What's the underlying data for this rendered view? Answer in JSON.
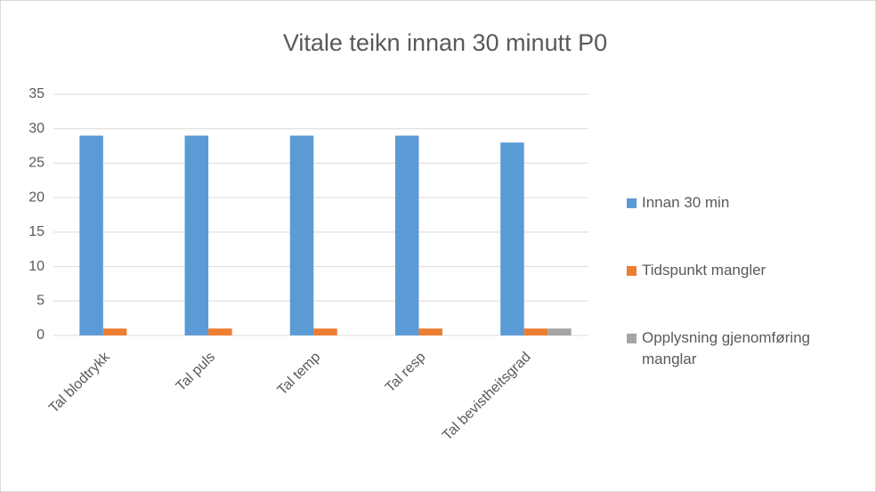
{
  "chart_data": {
    "type": "bar",
    "title": "Vitale teikn innan 30 minutt P0",
    "categories": [
      "Tal blodtrykk",
      "Tal puls",
      "Tal temp",
      "Tal resp",
      "Tal bevistheitsgrad"
    ],
    "series": [
      {
        "name": "Innan 30 min",
        "color": "#5b9bd5",
        "values": [
          29,
          29,
          29,
          29,
          28
        ]
      },
      {
        "name": "Tidspunkt mangler",
        "color": "#ed7d31",
        "values": [
          1,
          1,
          1,
          1,
          1
        ]
      },
      {
        "name": "Opplysning gjenomføring manglar",
        "color": "#a5a5a5",
        "values": [
          0,
          0,
          0,
          0,
          1
        ]
      }
    ],
    "ylim": [
      0,
      35
    ],
    "yticks": [
      0,
      5,
      10,
      15,
      20,
      25,
      30,
      35
    ],
    "grid": true,
    "legend": "right"
  }
}
